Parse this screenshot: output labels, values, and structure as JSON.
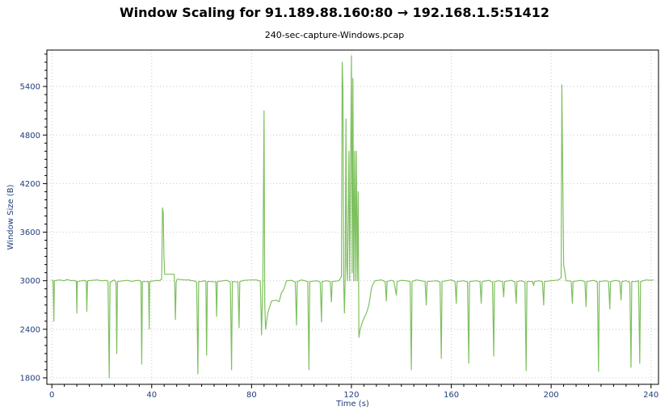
{
  "chart_data": {
    "type": "line",
    "title": "Window Scaling for 91.189.88.160:80 → 192.168.1.5:51412",
    "subtitle": "240-sec-capture-Windows.pcap",
    "xlabel": "Time (s)",
    "ylabel": "Window Size (B)",
    "xlim": [
      -2,
      243
    ],
    "ylim": [
      1720,
      5850
    ],
    "x_ticks": [
      0,
      40,
      80,
      120,
      160,
      200,
      240
    ],
    "y_ticks": [
      1800,
      2400,
      3000,
      3600,
      4200,
      4800,
      5400
    ],
    "grid": true,
    "line_color": "#7ec05f",
    "series": [
      {
        "baseline": 3010,
        "points": [
          [
            0,
            3010
          ],
          [
            0.5,
            3000
          ],
          [
            0.8,
            2500
          ],
          [
            1.0,
            3000
          ],
          [
            3,
            3010
          ],
          [
            5,
            3000
          ],
          [
            6,
            3015
          ],
          [
            8,
            3000
          ],
          [
            9,
            3005
          ],
          [
            9.8,
            2990
          ],
          [
            10,
            2600
          ],
          [
            10.2,
            2990
          ],
          [
            13,
            3005
          ],
          [
            13.8,
            2990
          ],
          [
            14,
            2620
          ],
          [
            14.3,
            3000
          ],
          [
            18,
            3010
          ],
          [
            20,
            3000
          ],
          [
            22,
            3005
          ],
          [
            22.5,
            2980
          ],
          [
            23,
            1800
          ],
          [
            23.3,
            2980
          ],
          [
            25,
            3010
          ],
          [
            25.7,
            2980
          ],
          [
            26,
            2100
          ],
          [
            26.3,
            2990
          ],
          [
            30,
            3005
          ],
          [
            31,
            3000
          ],
          [
            32,
            2990
          ],
          [
            33,
            3000
          ],
          [
            35,
            3005
          ],
          [
            35.7,
            2990
          ],
          [
            36,
            1970
          ],
          [
            36.3,
            2990
          ],
          [
            38.7,
            2990
          ],
          [
            39,
            2400
          ],
          [
            39.2,
            2990
          ],
          [
            42,
            3005
          ],
          [
            43,
            3000
          ],
          [
            44,
            3020
          ],
          [
            44.3,
            3900
          ],
          [
            44.6,
            3850
          ],
          [
            44.9,
            3300
          ],
          [
            45.2,
            3080
          ],
          [
            47,
            3080
          ],
          [
            49,
            3080
          ],
          [
            49.2,
            2980
          ],
          [
            49.5,
            2520
          ],
          [
            49.8,
            2980
          ],
          [
            50.2,
            3020
          ],
          [
            53,
            3010
          ],
          [
            55,
            3010
          ],
          [
            56,
            3000
          ],
          [
            57,
            3000
          ],
          [
            58,
            2980
          ],
          [
            58.5,
            1850
          ],
          [
            58.8,
            2990
          ],
          [
            60,
            2990
          ],
          [
            61,
            3000
          ],
          [
            61.7,
            2990
          ],
          [
            62,
            2080
          ],
          [
            62.3,
            2990
          ],
          [
            64,
            2990
          ],
          [
            65.7,
            2985
          ],
          [
            66,
            2560
          ],
          [
            66.3,
            2990
          ],
          [
            70,
            3005
          ],
          [
            71.5,
            2985
          ],
          [
            72,
            1900
          ],
          [
            72.3,
            2990
          ],
          [
            74.5,
            2985
          ],
          [
            75,
            2420
          ],
          [
            75.3,
            2990
          ],
          [
            77,
            3005
          ],
          [
            80,
            3010
          ],
          [
            82,
            3010
          ],
          [
            83.5,
            2995
          ],
          [
            84,
            2330
          ],
          [
            84.5,
            2980
          ],
          [
            85,
            5100
          ],
          [
            85.3,
            2700
          ],
          [
            85.6,
            2400
          ],
          [
            86.5,
            2600
          ],
          [
            88,
            2750
          ],
          [
            90,
            2760
          ],
          [
            91,
            2740
          ],
          [
            92,
            2850
          ],
          [
            93,
            2900
          ],
          [
            94,
            3000
          ],
          [
            96,
            3005
          ],
          [
            97.5,
            2985
          ],
          [
            98,
            2450
          ],
          [
            98.3,
            2990
          ],
          [
            100,
            3010
          ],
          [
            102.5,
            2990
          ],
          [
            103,
            1900
          ],
          [
            103.3,
            2990
          ],
          [
            106,
            3000
          ],
          [
            107.5,
            2985
          ],
          [
            108,
            2490
          ],
          [
            108.3,
            2990
          ],
          [
            110,
            3000
          ],
          [
            111.5,
            2990
          ],
          [
            112,
            2740
          ],
          [
            112.3,
            2990
          ],
          [
            115,
            3000
          ],
          [
            116,
            3050
          ],
          [
            116.3,
            5700
          ],
          [
            116.6,
            5400
          ],
          [
            116.9,
            3000
          ],
          [
            117.2,
            2600
          ],
          [
            117.5,
            3000
          ],
          [
            117.8,
            5000
          ],
          [
            118.1,
            3200
          ],
          [
            118.4,
            3000
          ],
          [
            119,
            4600
          ],
          [
            119.3,
            3000
          ],
          [
            120,
            5780
          ],
          [
            120.3,
            3100
          ],
          [
            120.6,
            5500
          ],
          [
            120.9,
            3000
          ],
          [
            121.3,
            4600
          ],
          [
            121.6,
            3000
          ],
          [
            122,
            4600
          ],
          [
            122.3,
            3000
          ],
          [
            122.7,
            4100
          ],
          [
            123,
            2300
          ],
          [
            123.5,
            2400
          ],
          [
            124.5,
            2500
          ],
          [
            126,
            2600
          ],
          [
            127,
            2700
          ],
          [
            128,
            2900
          ],
          [
            128.5,
            2950
          ],
          [
            129.5,
            3000
          ],
          [
            132,
            3010
          ],
          [
            133.5,
            2990
          ],
          [
            134,
            2750
          ],
          [
            134.3,
            2990
          ],
          [
            136,
            3005
          ],
          [
            137,
            2995
          ],
          [
            138,
            2820
          ],
          [
            138.3,
            2990
          ],
          [
            140,
            3005
          ],
          [
            142,
            3000
          ],
          [
            143.5,
            2990
          ],
          [
            144,
            1900
          ],
          [
            144.3,
            2990
          ],
          [
            146,
            3010
          ],
          [
            148,
            3000
          ],
          [
            149.5,
            2990
          ],
          [
            150,
            2700
          ],
          [
            150.3,
            2990
          ],
          [
            154,
            3000
          ],
          [
            155.5,
            2985
          ],
          [
            156,
            2040
          ],
          [
            156.3,
            2990
          ],
          [
            158,
            3000
          ],
          [
            160,
            3010
          ],
          [
            161.5,
            2990
          ],
          [
            162,
            2720
          ],
          [
            162.3,
            2990
          ],
          [
            165,
            3000
          ],
          [
            166.5,
            2985
          ],
          [
            167,
            1980
          ],
          [
            167.3,
            2990
          ],
          [
            170,
            3000
          ],
          [
            171.5,
            2990
          ],
          [
            172,
            2720
          ],
          [
            172.3,
            2990
          ],
          [
            175,
            3005
          ],
          [
            176.5,
            2985
          ],
          [
            177,
            2070
          ],
          [
            177.3,
            2990
          ],
          [
            179,
            3000
          ],
          [
            180.5,
            2990
          ],
          [
            181,
            2800
          ],
          [
            181.3,
            2990
          ],
          [
            184,
            3005
          ],
          [
            185.5,
            2985
          ],
          [
            186,
            2720
          ],
          [
            186.3,
            2990
          ],
          [
            188,
            3000
          ],
          [
            189.5,
            2985
          ],
          [
            190,
            1890
          ],
          [
            190.3,
            2990
          ],
          [
            192.5,
            2990
          ],
          [
            193,
            2940
          ],
          [
            193.3,
            2990
          ],
          [
            195,
            3000
          ],
          [
            196.5,
            2990
          ],
          [
            197,
            2700
          ],
          [
            197.3,
            2990
          ],
          [
            200,
            3000
          ],
          [
            203,
            3010
          ],
          [
            204,
            3040
          ],
          [
            204.3,
            5420
          ],
          [
            204.6,
            4400
          ],
          [
            205,
            3200
          ],
          [
            206,
            3000
          ],
          [
            208,
            2995
          ],
          [
            208.5,
            2720
          ],
          [
            208.8,
            2990
          ],
          [
            212,
            3005
          ],
          [
            213.5,
            2990
          ],
          [
            214,
            2680
          ],
          [
            214.3,
            2990
          ],
          [
            217,
            3005
          ],
          [
            218.5,
            2985
          ],
          [
            219,
            1880
          ],
          [
            219.3,
            2990
          ],
          [
            222,
            3000
          ],
          [
            223,
            2990
          ],
          [
            223.5,
            2650
          ],
          [
            223.8,
            2990
          ],
          [
            226,
            3005
          ],
          [
            227.5,
            2990
          ],
          [
            228,
            2760
          ],
          [
            228.3,
            2990
          ],
          [
            230,
            3000
          ],
          [
            231.5,
            2980
          ],
          [
            232,
            1930
          ],
          [
            232.3,
            2990
          ],
          [
            234,
            2990
          ],
          [
            235,
            3000
          ],
          [
            235.5,
            1980
          ],
          [
            235.8,
            2990
          ],
          [
            238,
            3010
          ],
          [
            240,
            3005
          ],
          [
            241,
            3010
          ]
        ]
      }
    ]
  }
}
